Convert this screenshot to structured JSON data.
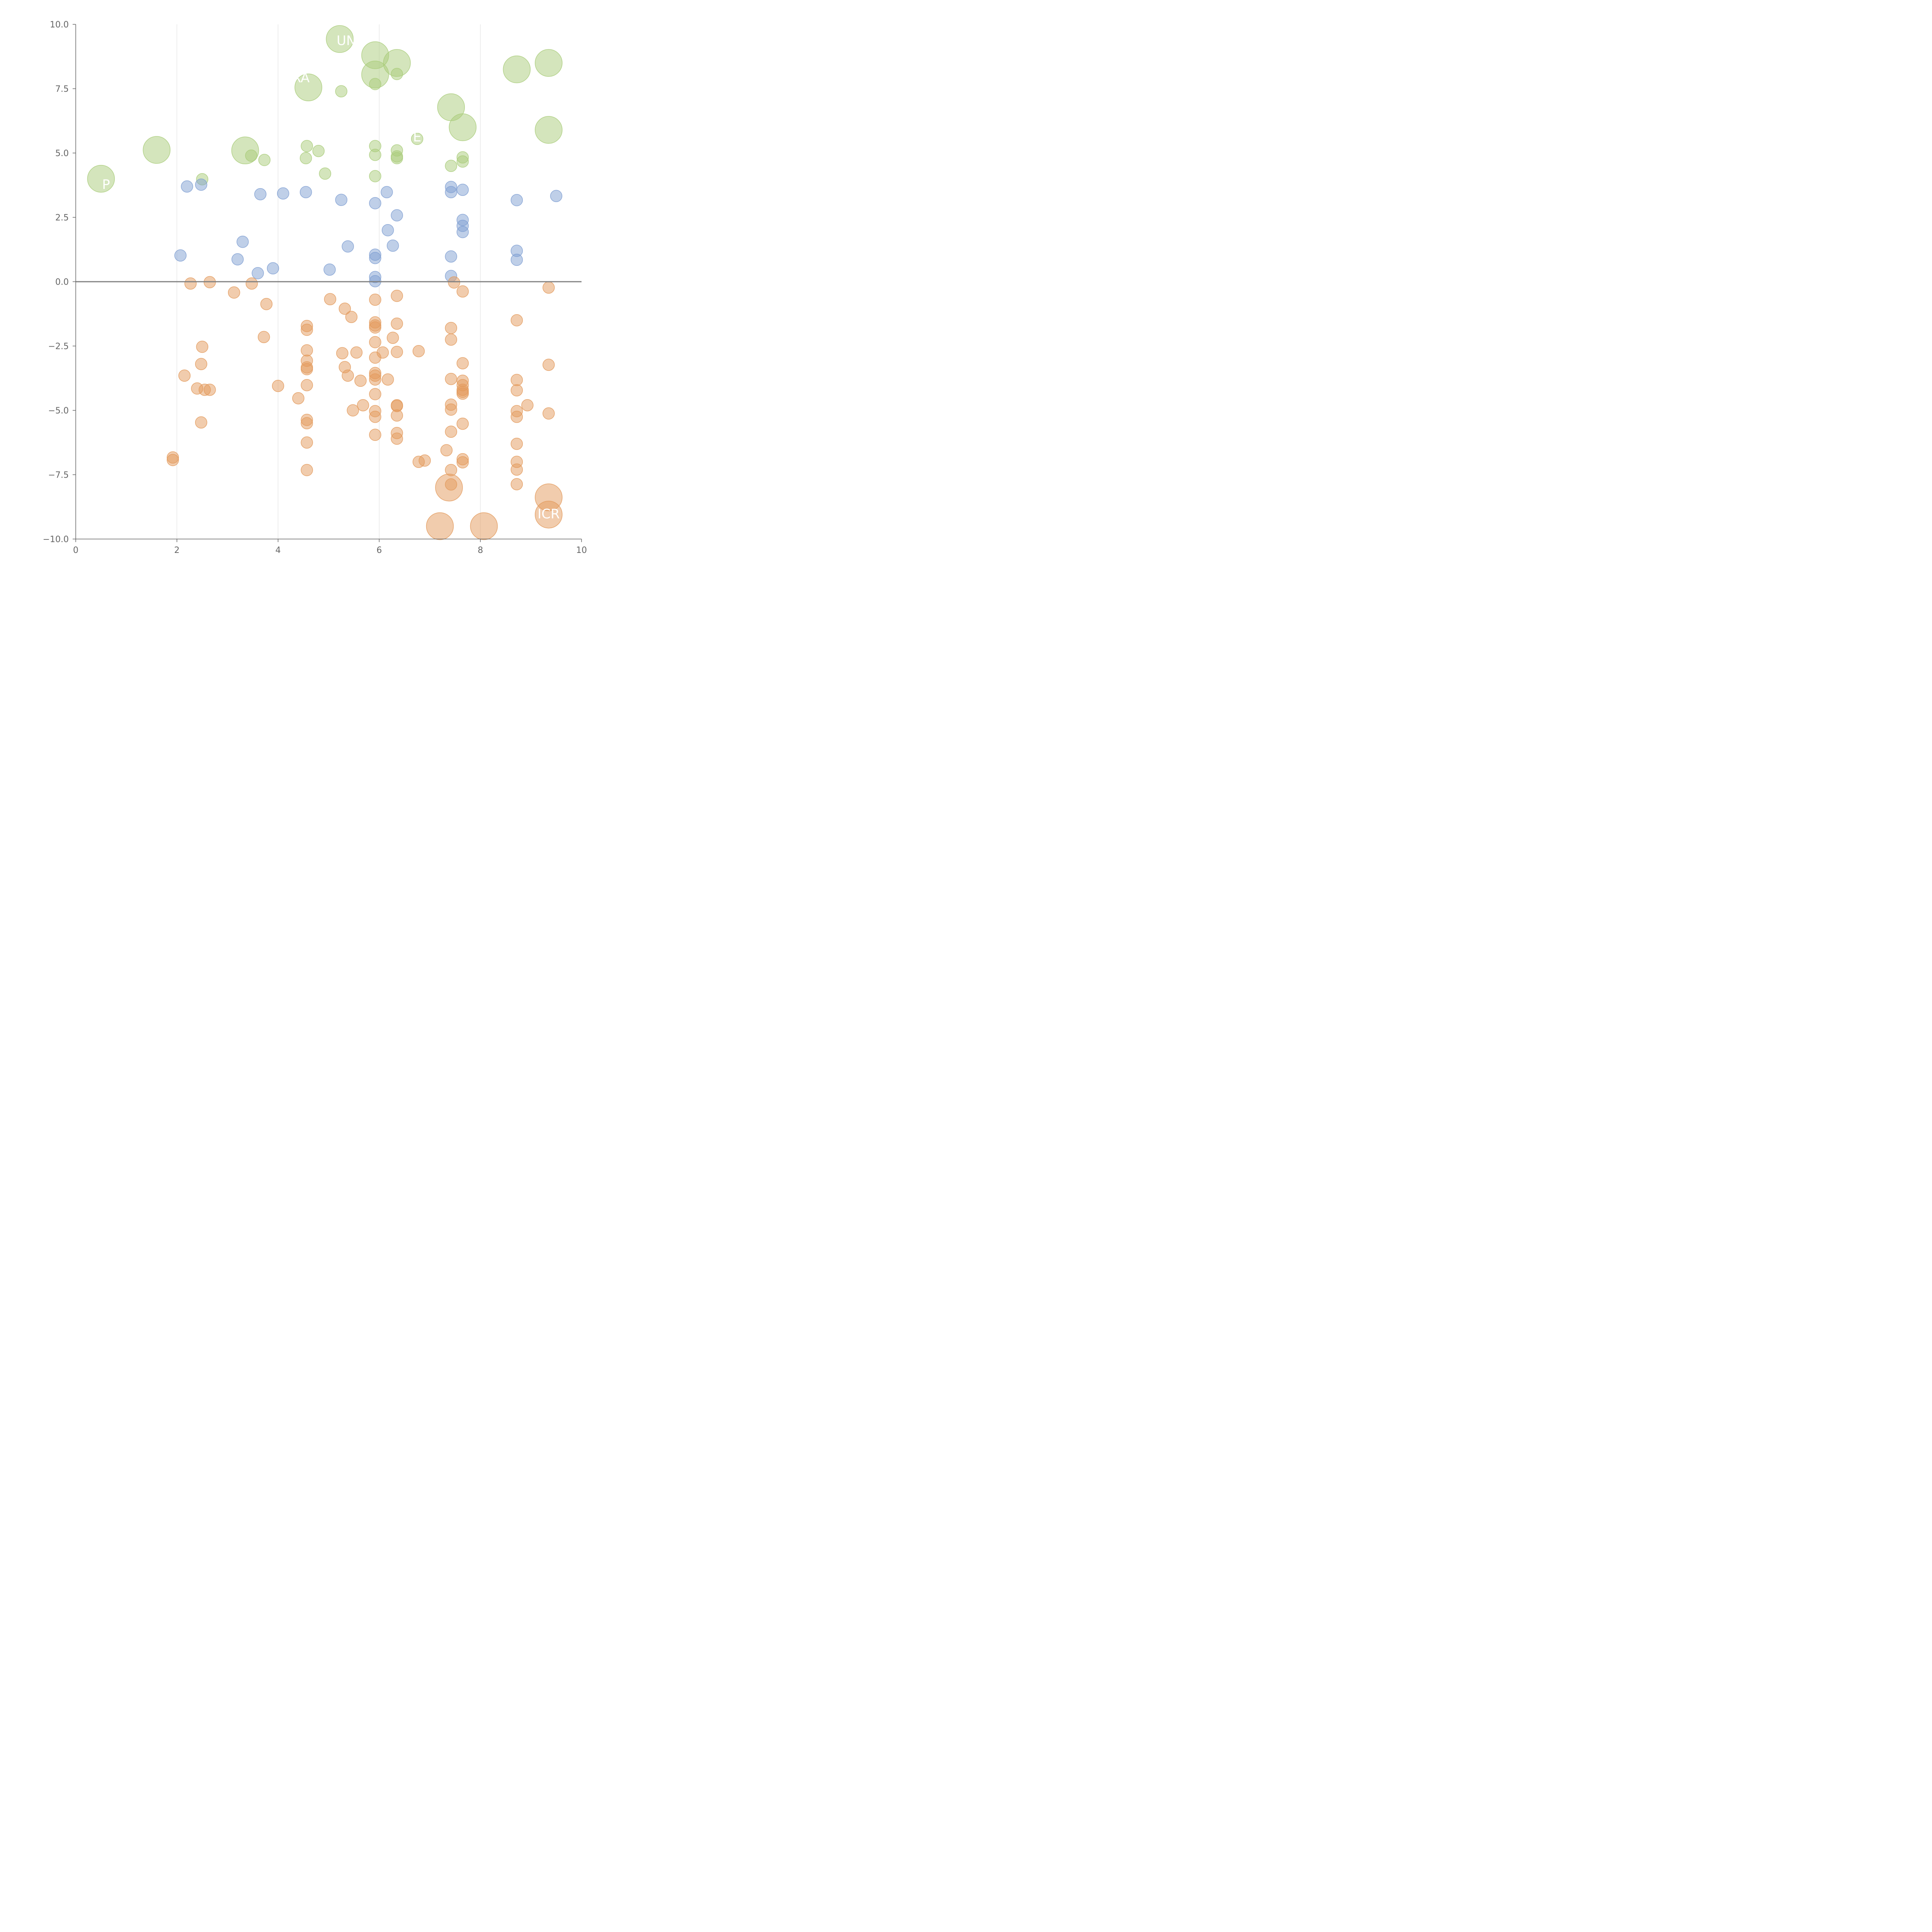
{
  "chart_data": {
    "type": "scatter",
    "title": "",
    "xlabel": "",
    "ylabel": "",
    "xlim": [
      0,
      10
    ],
    "ylim": [
      -10,
      10
    ],
    "grid": "vertical",
    "legend": "none",
    "x_ticks": [
      "0",
      "2",
      "4",
      "6",
      "8",
      "10"
    ],
    "y_ticks": [
      "10.0",
      "7.5",
      "5.0",
      "2.5",
      "0.0",
      "−2.5",
      "−5.0",
      "−7.5",
      "−10.0"
    ],
    "zero_line": true,
    "colors": {
      "green": "#a9cc7a",
      "blue": "#7f9fd2",
      "orange": "#e39a5c",
      "axis": "#666666",
      "grid": "#dddddd",
      "zero_line": "#808080"
    },
    "series": [
      {
        "color_key": "green",
        "points": [
          [
            0.5,
            4.0,
            2
          ],
          [
            1.6,
            5.12,
            2
          ],
          [
            3.35,
            5.1,
            2
          ],
          [
            4.6,
            7.55,
            2
          ],
          [
            5.22,
            9.43,
            2
          ],
          [
            5.92,
            8.8,
            2
          ],
          [
            5.92,
            8.05,
            2
          ],
          [
            6.35,
            8.5,
            2
          ],
          [
            7.42,
            6.78,
            2
          ],
          [
            7.65,
            6.0,
            2
          ],
          [
            8.72,
            8.25,
            2
          ],
          [
            9.35,
            8.5,
            2
          ],
          [
            9.35,
            5.9,
            2
          ],
          [
            2.5,
            3.98,
            1
          ],
          [
            3.47,
            4.9,
            1
          ],
          [
            3.73,
            4.73,
            1
          ],
          [
            4.57,
            5.27,
            1
          ],
          [
            4.55,
            4.8,
            1
          ],
          [
            4.8,
            5.08,
            1
          ],
          [
            4.93,
            4.2,
            1
          ],
          [
            5.25,
            7.4,
            1
          ],
          [
            5.92,
            7.68,
            1
          ],
          [
            5.92,
            5.27,
            1
          ],
          [
            5.92,
            4.93,
            1
          ],
          [
            5.92,
            4.1,
            1
          ],
          [
            6.35,
            8.07,
            1
          ],
          [
            6.35,
            5.1,
            1
          ],
          [
            6.35,
            4.87,
            1
          ],
          [
            6.35,
            4.8,
            1
          ],
          [
            6.75,
            5.55,
            1
          ],
          [
            7.42,
            4.5,
            1
          ],
          [
            7.65,
            4.83,
            1
          ],
          [
            7.65,
            4.67,
            1
          ]
        ]
      },
      {
        "color_key": "blue",
        "points": [
          [
            2.07,
            1.02,
            1
          ],
          [
            2.2,
            3.7,
            1
          ],
          [
            2.48,
            3.77,
            1
          ],
          [
            3.2,
            0.87,
            1
          ],
          [
            3.3,
            1.55,
            1
          ],
          [
            3.6,
            0.33,
            1
          ],
          [
            3.65,
            3.4,
            1
          ],
          [
            3.9,
            0.52,
            1
          ],
          [
            4.1,
            3.43,
            1
          ],
          [
            4.55,
            3.48,
            1
          ],
          [
            5.02,
            0.47,
            1
          ],
          [
            5.25,
            3.18,
            1
          ],
          [
            5.38,
            1.37,
            1
          ],
          [
            5.92,
            3.05,
            1
          ],
          [
            5.92,
            1.05,
            1
          ],
          [
            5.92,
            0.92,
            1
          ],
          [
            5.92,
            0.18,
            1
          ],
          [
            5.92,
            0.02,
            1
          ],
          [
            6.15,
            3.48,
            1
          ],
          [
            6.17,
            2.0,
            1
          ],
          [
            6.27,
            1.4,
            1
          ],
          [
            6.35,
            2.58,
            1
          ],
          [
            7.42,
            3.68,
            1
          ],
          [
            7.42,
            3.48,
            1
          ],
          [
            7.42,
            0.98,
            1
          ],
          [
            7.42,
            0.22,
            1
          ],
          [
            7.65,
            3.57,
            1
          ],
          [
            7.65,
            2.4,
            1
          ],
          [
            7.65,
            2.17,
            1
          ],
          [
            7.65,
            1.93,
            1
          ],
          [
            8.72,
            3.17,
            1
          ],
          [
            8.72,
            1.2,
            1
          ],
          [
            8.72,
            0.85,
            1
          ],
          [
            9.5,
            3.33,
            1
          ]
        ]
      },
      {
        "color_key": "orange",
        "points": [
          [
            7.2,
            -9.5,
            2
          ],
          [
            8.07,
            -9.5,
            2
          ],
          [
            7.38,
            -8.0,
            2
          ],
          [
            9.35,
            -8.38,
            2
          ],
          [
            9.35,
            -9.05,
            2
          ],
          [
            1.92,
            -6.83,
            1
          ],
          [
            1.92,
            -6.93,
            1
          ],
          [
            2.15,
            -3.65,
            1
          ],
          [
            2.27,
            -0.07,
            1
          ],
          [
            2.4,
            -4.15,
            1
          ],
          [
            2.48,
            -5.47,
            1
          ],
          [
            2.48,
            -3.2,
            1
          ],
          [
            2.5,
            -2.53,
            1
          ],
          [
            2.55,
            -4.2,
            1
          ],
          [
            2.65,
            -4.2,
            1
          ],
          [
            2.65,
            -0.02,
            1
          ],
          [
            3.13,
            -0.42,
            1
          ],
          [
            3.48,
            -0.07,
            1
          ],
          [
            3.72,
            -2.15,
            1
          ],
          [
            3.77,
            -0.87,
            1
          ],
          [
            4.0,
            -4.05,
            1
          ],
          [
            4.4,
            -4.53,
            1
          ],
          [
            4.57,
            -1.72,
            1
          ],
          [
            4.57,
            -1.87,
            1
          ],
          [
            4.57,
            -2.67,
            1
          ],
          [
            4.57,
            -3.07,
            1
          ],
          [
            4.57,
            -3.33,
            1
          ],
          [
            4.57,
            -3.4,
            1
          ],
          [
            4.57,
            -4.02,
            1
          ],
          [
            4.57,
            -5.37,
            1
          ],
          [
            4.57,
            -5.5,
            1
          ],
          [
            4.57,
            -6.25,
            1
          ],
          [
            4.57,
            -7.32,
            1
          ],
          [
            5.03,
            -0.68,
            1
          ],
          [
            5.27,
            -2.78,
            1
          ],
          [
            5.32,
            -1.05,
            1
          ],
          [
            5.32,
            -3.32,
            1
          ],
          [
            5.38,
            -3.65,
            1
          ],
          [
            5.45,
            -1.37,
            1
          ],
          [
            5.48,
            -5.0,
            1
          ],
          [
            5.55,
            -2.75,
            1
          ],
          [
            5.63,
            -3.85,
            1
          ],
          [
            5.68,
            -4.8,
            1
          ],
          [
            5.92,
            -0.7,
            1
          ],
          [
            5.92,
            -1.58,
            1
          ],
          [
            5.92,
            -1.7,
            1
          ],
          [
            5.92,
            -1.78,
            1
          ],
          [
            5.92,
            -2.35,
            1
          ],
          [
            5.92,
            -2.95,
            1
          ],
          [
            5.92,
            -3.55,
            1
          ],
          [
            5.92,
            -3.65,
            1
          ],
          [
            5.92,
            -3.8,
            1
          ],
          [
            5.92,
            -4.37,
            1
          ],
          [
            5.92,
            -5.03,
            1
          ],
          [
            5.92,
            -5.25,
            1
          ],
          [
            5.92,
            -5.95,
            1
          ],
          [
            6.07,
            -2.75,
            1
          ],
          [
            6.17,
            -3.8,
            1
          ],
          [
            6.27,
            -2.18,
            1
          ],
          [
            6.35,
            -0.55,
            1
          ],
          [
            6.35,
            -1.63,
            1
          ],
          [
            6.35,
            -2.73,
            1
          ],
          [
            6.35,
            -4.8,
            1
          ],
          [
            6.35,
            -4.83,
            1
          ],
          [
            6.35,
            -5.2,
            1
          ],
          [
            6.35,
            -5.88,
            1
          ],
          [
            6.35,
            -6.1,
            1
          ],
          [
            6.78,
            -2.7,
            1
          ],
          [
            6.78,
            -7.0,
            1
          ],
          [
            6.9,
            -6.95,
            1
          ],
          [
            7.33,
            -6.55,
            1
          ],
          [
            7.42,
            -1.8,
            1
          ],
          [
            7.42,
            -2.25,
            1
          ],
          [
            7.42,
            -3.78,
            1
          ],
          [
            7.42,
            -4.78,
            1
          ],
          [
            7.42,
            -4.97,
            1
          ],
          [
            7.42,
            -5.83,
            1
          ],
          [
            7.42,
            -7.32,
            1
          ],
          [
            7.42,
            -7.88,
            1
          ],
          [
            7.48,
            -0.03,
            1
          ],
          [
            7.65,
            -0.38,
            1
          ],
          [
            7.65,
            -3.17,
            1
          ],
          [
            7.65,
            -3.85,
            1
          ],
          [
            7.65,
            -4.02,
            1
          ],
          [
            7.65,
            -4.2,
            1
          ],
          [
            7.65,
            -4.28,
            1
          ],
          [
            7.65,
            -4.35,
            1
          ],
          [
            7.65,
            -5.52,
            1
          ],
          [
            7.65,
            -6.9,
            1
          ],
          [
            7.65,
            -7.02,
            1
          ],
          [
            8.72,
            -1.5,
            1
          ],
          [
            8.72,
            -3.82,
            1
          ],
          [
            8.72,
            -4.22,
            1
          ],
          [
            8.72,
            -5.03,
            1
          ],
          [
            8.72,
            -5.25,
            1
          ],
          [
            8.72,
            -6.3,
            1
          ],
          [
            8.72,
            -7.0,
            1
          ],
          [
            8.72,
            -7.3,
            1
          ],
          [
            8.72,
            -7.87,
            1
          ],
          [
            8.93,
            -4.8,
            1
          ],
          [
            9.35,
            -0.23,
            1
          ],
          [
            9.35,
            -3.23,
            1
          ],
          [
            9.35,
            -5.12,
            1
          ]
        ]
      }
    ],
    "labels": [
      {
        "text": "P",
        "x": 0.6,
        "y": 3.6
      },
      {
        "text": "RA",
        "x": 4.45,
        "y": 7.75
      },
      {
        "text": "UN",
        "x": 5.35,
        "y": 9.2
      },
      {
        "text": "E",
        "x": 6.75,
        "y": 5.45
      },
      {
        "text": "ICR",
        "x": 9.35,
        "y": -9.2
      }
    ]
  }
}
